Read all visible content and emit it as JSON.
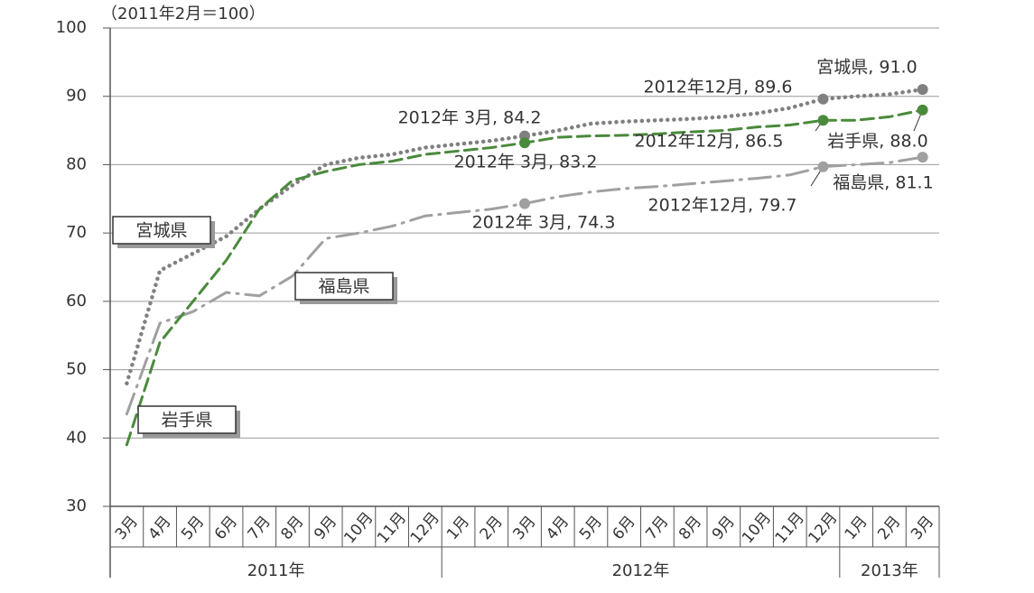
{
  "chart_data": {
    "type": "line",
    "y_label": "（2011年2月＝100）",
    "categories": [
      "3月",
      "4月",
      "5月",
      "6月",
      "7月",
      "8月",
      "9月",
      "10月",
      "11月",
      "12月",
      "1月",
      "2月",
      "3月",
      "4月",
      "5月",
      "6月",
      "7月",
      "8月",
      "9月",
      "10月",
      "11月",
      "12月",
      "1月",
      "2月",
      "3月"
    ],
    "x_groups": [
      "2011年",
      "2012年",
      "2013年"
    ],
    "ylim": [
      30,
      100
    ],
    "yticks": [
      30,
      40,
      50,
      60,
      70,
      80,
      90,
      100
    ],
    "grid": true,
    "series": [
      {
        "name": "宮城県",
        "color": "#808080",
        "style": "dotted",
        "values": [
          48,
          64.5,
          67,
          69.5,
          73.5,
          77,
          80,
          81,
          81.5,
          82.5,
          83,
          83.5,
          84.2,
          85,
          86,
          86.3,
          86.5,
          86.7,
          87,
          87.5,
          88.3,
          89.6,
          90,
          90.3,
          91.0
        ],
        "value_labels": [
          null,
          null,
          null,
          null,
          null,
          null,
          null,
          null,
          null,
          null,
          null,
          null,
          "2012年 3月, 84.2",
          null,
          null,
          null,
          null,
          null,
          null,
          null,
          null,
          "2012年12月, 89.6",
          null,
          null,
          "宮城県, 91.0"
        ]
      },
      {
        "name": "岩手県",
        "color": "#4a8a3c",
        "style": "dashed",
        "values": [
          39,
          54,
          60,
          66,
          73.5,
          77.7,
          79,
          80,
          80.5,
          81.5,
          82,
          82.5,
          83.2,
          84,
          84.2,
          84.3,
          84.5,
          84.8,
          85,
          85.5,
          85.8,
          86.5,
          86.5,
          87,
          88.0
        ],
        "value_labels": [
          null,
          null,
          null,
          null,
          null,
          null,
          null,
          null,
          null,
          null,
          null,
          null,
          "2012年 3月, 83.2",
          null,
          null,
          null,
          null,
          null,
          null,
          null,
          null,
          "2012年12月, 86.5",
          null,
          null,
          "岩手県, 88.0"
        ]
      },
      {
        "name": "福島県",
        "color": "#a0a0a0",
        "style": "dashdot",
        "values": [
          43.5,
          56.8,
          58.5,
          61.3,
          60.8,
          63.7,
          69.2,
          70,
          71,
          72.5,
          73,
          73.5,
          74.3,
          75.3,
          76,
          76.5,
          76.8,
          77.2,
          77.6,
          78,
          78.5,
          79.7,
          80,
          80.3,
          81.1
        ],
        "value_labels": [
          null,
          null,
          null,
          null,
          null,
          null,
          null,
          null,
          null,
          null,
          null,
          null,
          "2012年 3月, 74.3",
          null,
          null,
          null,
          null,
          null,
          null,
          null,
          null,
          "2012年12月, 79.7",
          null,
          null,
          "福島県, 81.1"
        ]
      }
    ]
  }
}
